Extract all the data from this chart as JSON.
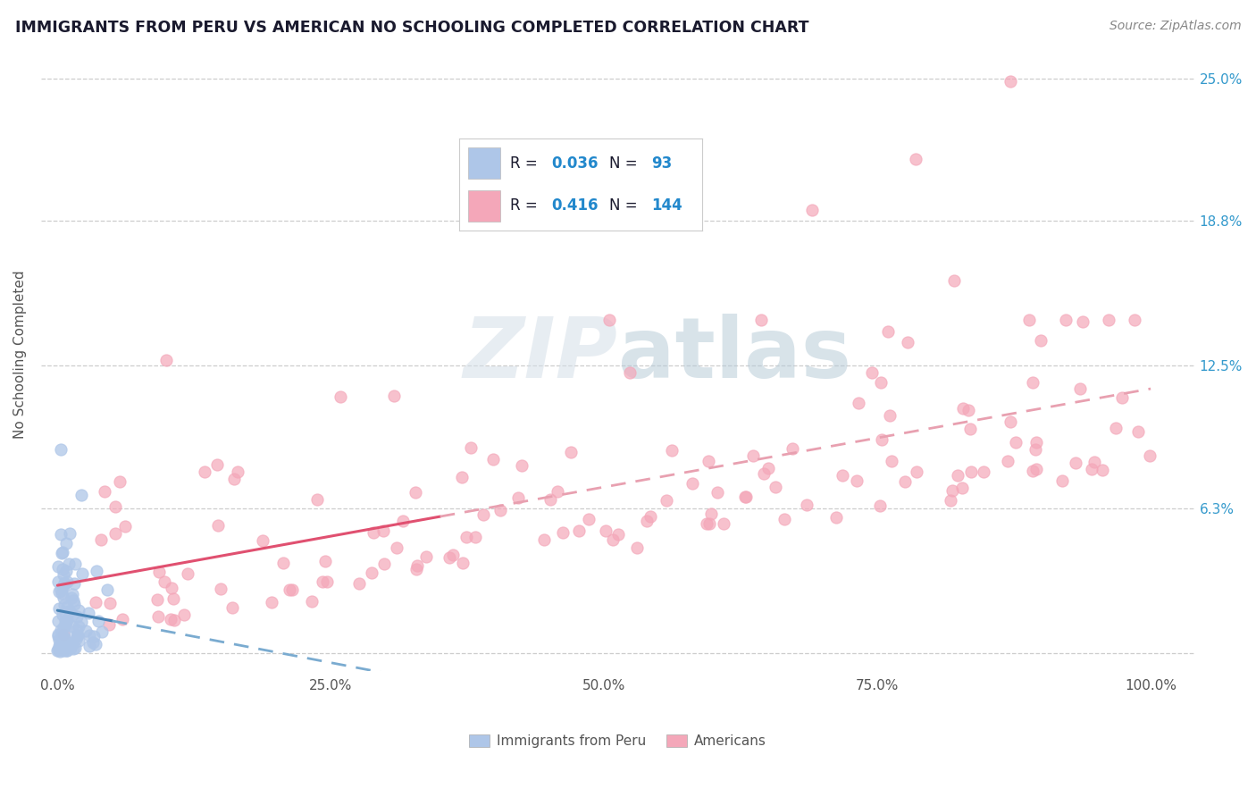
{
  "title": "IMMIGRANTS FROM PERU VS AMERICAN NO SCHOOLING COMPLETED CORRELATION CHART",
  "source_text": "Source: ZipAtlas.com",
  "ylabel": "No Schooling Completed",
  "r_peru": 0.036,
  "n_peru": 93,
  "r_american": 0.416,
  "n_american": 144,
  "xlim": [
    -0.015,
    1.04
  ],
  "ylim": [
    -0.008,
    0.268
  ],
  "x_ticks": [
    0.0,
    0.25,
    0.5,
    0.75,
    1.0
  ],
  "x_tick_labels": [
    "0.0%",
    "25.0%",
    "50.0%",
    "75.0%",
    "100.0%"
  ],
  "y_ticks": [
    0.0,
    0.063,
    0.125,
    0.188,
    0.25
  ],
  "y_tick_labels_right": [
    "",
    "6.3%",
    "12.5%",
    "18.8%",
    "25.0%"
  ],
  "color_peru": "#aec6e8",
  "color_american": "#f4a7b9",
  "trendline_peru_solid": "#4682b4",
  "trendline_peru_dashed": "#7aabd0",
  "trendline_american_solid": "#e05070",
  "trendline_american_dashed": "#e8a0b0",
  "watermark_color": "#d0dde8",
  "background_color": "#ffffff",
  "grid_color": "#c8c8c8",
  "legend_text_color": "#1a1a2e",
  "legend_value_color": "#2288cc",
  "axis_text_color": "#555555",
  "right_axis_color": "#3399cc",
  "title_color": "#1a1a2e",
  "source_color": "#888888"
}
